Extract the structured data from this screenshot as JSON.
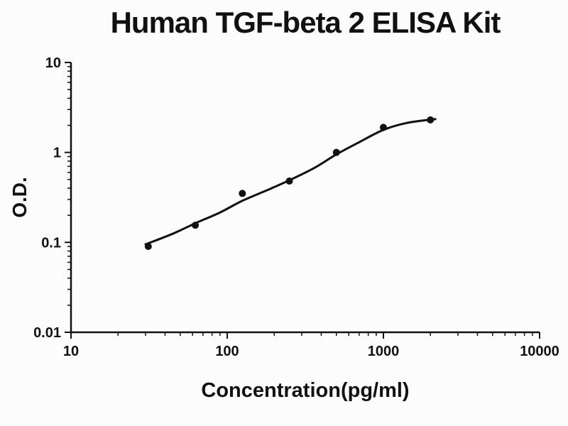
{
  "figure": {
    "background": "#fcfcfc",
    "ink_color": "#111111"
  },
  "chart_data": {
    "type": "line",
    "title": "Human TGF-beta 2 ELISA Kit",
    "xlabel": "Concentration(pg/ml)",
    "ylabel": "O.D.",
    "x_scale": "log",
    "y_scale": "log",
    "xlim": [
      10,
      10000
    ],
    "ylim": [
      0.01,
      10
    ],
    "x_tick_labels": [
      "10",
      "100",
      "1000",
      "10000"
    ],
    "y_tick_labels": [
      "0.01",
      "0.1",
      "1",
      "10"
    ],
    "grid": false,
    "legend_position": "none",
    "series": [
      {
        "name": "fitted-curve",
        "type": "line",
        "color": "#111111",
        "stroke_width": 3,
        "x": [
          30,
          45,
          62.5,
          90,
          125,
          180,
          250,
          360,
          500,
          700,
          1000,
          1400,
          2000,
          2150
        ],
        "y": [
          0.095,
          0.125,
          0.163,
          0.215,
          0.29,
          0.38,
          0.49,
          0.67,
          0.95,
          1.3,
          1.78,
          2.12,
          2.32,
          2.34
        ]
      },
      {
        "name": "standard-points",
        "type": "scatter",
        "marker": "filled-circle",
        "color": "#111111",
        "marker_radius": 5,
        "x": [
          31.25,
          62.5,
          125,
          250,
          500,
          1000,
          2000
        ],
        "y": [
          0.09,
          0.155,
          0.35,
          0.48,
          1.0,
          1.9,
          2.3
        ]
      }
    ]
  }
}
